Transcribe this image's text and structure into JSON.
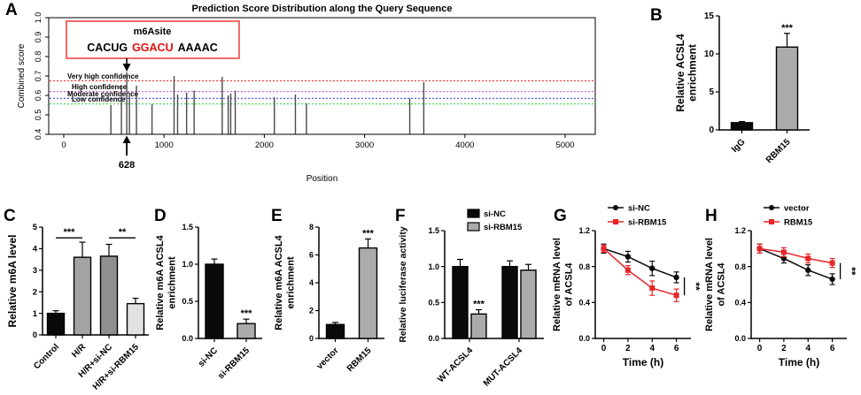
{
  "figure": {
    "panels": [
      {
        "letter": "A"
      },
      {
        "letter": "B"
      },
      {
        "letter": "C"
      },
      {
        "letter": "D"
      },
      {
        "letter": "E"
      },
      {
        "letter": "F"
      },
      {
        "letter": "G"
      },
      {
        "letter": "H"
      }
    ]
  },
  "chart_data": [
    {
      "panel": "A",
      "type": "stem",
      "title": "Prediction Score Distribution along the Query Sequence",
      "xlabel": "Position",
      "ylabel": "Combined score",
      "xlim": [
        -150,
        5300
      ],
      "ylim": [
        0.4,
        1.0
      ],
      "xticks": [
        0,
        1000,
        2000,
        3000,
        4000,
        5000
      ],
      "xtick_labels": [
        "0",
        "1000",
        "2000",
        "3000",
        "4000",
        "5000"
      ],
      "yticks": [
        0.4,
        0.5,
        0.6,
        0.7,
        0.8,
        0.9,
        1.0
      ],
      "ytick_labels": [
        "0.4",
        "0.5",
        "0.6",
        "0.7",
        "0.8",
        "0.9",
        "1.0"
      ],
      "grid": false,
      "legend_position": "none",
      "thresholds": [
        {
          "label": "Very high confidence",
          "value": 0.675,
          "color": "#ff2222"
        },
        {
          "label": "High confidence",
          "value": 0.62,
          "color": "#c24fe0"
        },
        {
          "label": "Moderate confidence",
          "value": 0.585,
          "color": "#2233ee"
        },
        {
          "label": "Low confidence",
          "value": 0.556,
          "color": "#33cc33"
        }
      ],
      "stems": [
        [
          470,
          0.55
        ],
        [
          575,
          0.65
        ],
        [
          628,
          0.72
        ],
        [
          655,
          0.61
        ],
        [
          725,
          0.65
        ],
        [
          880,
          0.555
        ],
        [
          1100,
          0.7
        ],
        [
          1135,
          0.605
        ],
        [
          1225,
          0.615
        ],
        [
          1300,
          0.625
        ],
        [
          1580,
          0.695
        ],
        [
          1640,
          0.6
        ],
        [
          1665,
          0.61
        ],
        [
          1710,
          0.625
        ],
        [
          2100,
          0.59
        ],
        [
          2310,
          0.605
        ],
        [
          2420,
          0.56
        ],
        [
          3450,
          0.585
        ],
        [
          3590,
          0.668
        ]
      ],
      "annotation": {
        "title": "m6Asite",
        "seq_pre": "CACUG",
        "seq_mid": "GGACU",
        "seq_post": "AAAAC",
        "seq_mid_color": "#e01010",
        "arrow_pos": 628,
        "arrow_label": "628",
        "box_color": "#f36a6a"
      }
    },
    {
      "panel": "B",
      "type": "bar",
      "ylabel_lines": [
        "Relative ACSL4",
        "enrichment"
      ],
      "categories": [
        "IgG",
        "RBM15"
      ],
      "values": [
        0.95,
        10.9
      ],
      "errors": [
        0.15,
        1.8
      ],
      "sigs": [
        "",
        "***"
      ],
      "bar_colors": [
        "#0a0a0a",
        "#ababab"
      ],
      "ylim": [
        0,
        15
      ],
      "ytick_labels": [
        "0",
        "5",
        "10",
        "15"
      ]
    },
    {
      "panel": "C",
      "type": "bar",
      "ylabel_lines": [
        "Relative m6A level"
      ],
      "categories": [
        "Control",
        "H/R",
        "H/R+si-NC",
        "H/R+si-RBM15"
      ],
      "values": [
        1.0,
        3.6,
        3.65,
        1.45
      ],
      "errors": [
        0.12,
        0.7,
        0.55,
        0.25
      ],
      "sigs": [
        "",
        "",
        "",
        ""
      ],
      "bar_colors": [
        "#0a0a0a",
        "#a4a4a4",
        "#8f8f8f",
        "#e2e2e2"
      ],
      "ylim": [
        0,
        5
      ],
      "ytick_labels": [
        "0",
        "1",
        "2",
        "3",
        "4",
        "5"
      ],
      "sig_brackets": [
        {
          "from": 0,
          "to": 1,
          "y": 4.5,
          "label": "***"
        },
        {
          "from": 2,
          "to": 3,
          "y": 4.5,
          "label": "**"
        }
      ]
    },
    {
      "panel": "D",
      "type": "bar",
      "ylabel_lines": [
        "Relative m6A ACSL4",
        "enrichment"
      ],
      "categories": [
        "si-NC",
        "si-RBM15"
      ],
      "values": [
        1.0,
        0.2
      ],
      "errors": [
        0.07,
        0.06
      ],
      "sigs": [
        "",
        "***"
      ],
      "bar_colors": [
        "#0a0a0a",
        "#ababab"
      ],
      "ylim": [
        0,
        1.5
      ],
      "ytick_labels": [
        "0.0",
        "0.5",
        "1.0",
        "1.5"
      ]
    },
    {
      "panel": "E",
      "type": "bar",
      "ylabel_lines": [
        "Relative m6A ACSL4",
        "enrichment"
      ],
      "categories": [
        "vector",
        "RBM15"
      ],
      "values": [
        1.0,
        6.5
      ],
      "errors": [
        0.15,
        0.65
      ],
      "sigs": [
        "",
        "***"
      ],
      "bar_colors": [
        "#0a0a0a",
        "#ababab"
      ],
      "ylim": [
        0,
        8
      ],
      "ytick_labels": [
        "0",
        "2",
        "4",
        "6",
        "8"
      ]
    },
    {
      "panel": "F",
      "type": "bar",
      "ylabel_lines": [
        "Relative luciferase activity"
      ],
      "categories": [
        "WT-ACSL4",
        "MUT-ACSL4"
      ],
      "legend": true,
      "legend_position": "top",
      "series": [
        {
          "name": "si-NC",
          "color": "#0a0a0a",
          "values": [
            1.0,
            1.0
          ],
          "errors": [
            0.1,
            0.08
          ],
          "sigs": [
            "",
            ""
          ]
        },
        {
          "name": "si-RBM15",
          "color": "#ababab",
          "values": [
            0.34,
            0.95
          ],
          "errors": [
            0.06,
            0.08
          ],
          "sigs": [
            "***",
            ""
          ]
        }
      ],
      "ylim": [
        0,
        1.5
      ],
      "ytick_labels": [
        "0.0",
        "0.5",
        "1.0",
        "1.5"
      ]
    },
    {
      "panel": "G",
      "type": "line",
      "ylabel_lines": [
        "Relative mRNA level",
        "of ACSL4"
      ],
      "xlabel": "Time (h)",
      "x": [
        0,
        2,
        4,
        6
      ],
      "xtick_labels": [
        "0",
        "2",
        "4",
        "6"
      ],
      "xlim": [
        -0.7,
        7.2
      ],
      "ylim": [
        0,
        1.2
      ],
      "ytick_labels": [
        "0.0",
        "0.4",
        "0.8",
        "1.2"
      ],
      "legend_position": "top-left",
      "series": [
        {
          "name": "si-NC",
          "color": "#0a0a0a",
          "marker": "circle",
          "values": [
            1.0,
            0.91,
            0.78,
            0.68
          ],
          "errors": [
            0.05,
            0.06,
            0.08,
            0.06
          ]
        },
        {
          "name": "si-RBM15",
          "color": "#e8252a",
          "marker": "square",
          "values": [
            1.0,
            0.76,
            0.56,
            0.48
          ],
          "errors": [
            0.04,
            0.05,
            0.08,
            0.07
          ]
        }
      ],
      "bracket": {
        "from": 0.68,
        "to": 0.48,
        "label": "**"
      }
    },
    {
      "panel": "H",
      "type": "line",
      "ylabel_lines": [
        "Relative mRNA level",
        "of ACSL4"
      ],
      "xlabel": "Time (h)",
      "x": [
        0,
        2,
        4,
        6
      ],
      "xtick_labels": [
        "0",
        "2",
        "4",
        "6"
      ],
      "xlim": [
        -0.7,
        7.2
      ],
      "ylim": [
        0,
        1.2
      ],
      "ytick_labels": [
        "0.0",
        "0.4",
        "0.8",
        "1.2"
      ],
      "legend_position": "top-left",
      "series": [
        {
          "name": "vector",
          "color": "#0a0a0a",
          "marker": "circle",
          "values": [
            1.0,
            0.89,
            0.76,
            0.66
          ],
          "errors": [
            0.05,
            0.05,
            0.06,
            0.06
          ]
        },
        {
          "name": "RBM15",
          "color": "#e8252a",
          "marker": "square",
          "values": [
            1.0,
            0.96,
            0.89,
            0.84
          ],
          "errors": [
            0.05,
            0.05,
            0.05,
            0.05
          ]
        }
      ],
      "bracket": {
        "from": 0.84,
        "to": 0.66,
        "label": "**"
      }
    }
  ]
}
